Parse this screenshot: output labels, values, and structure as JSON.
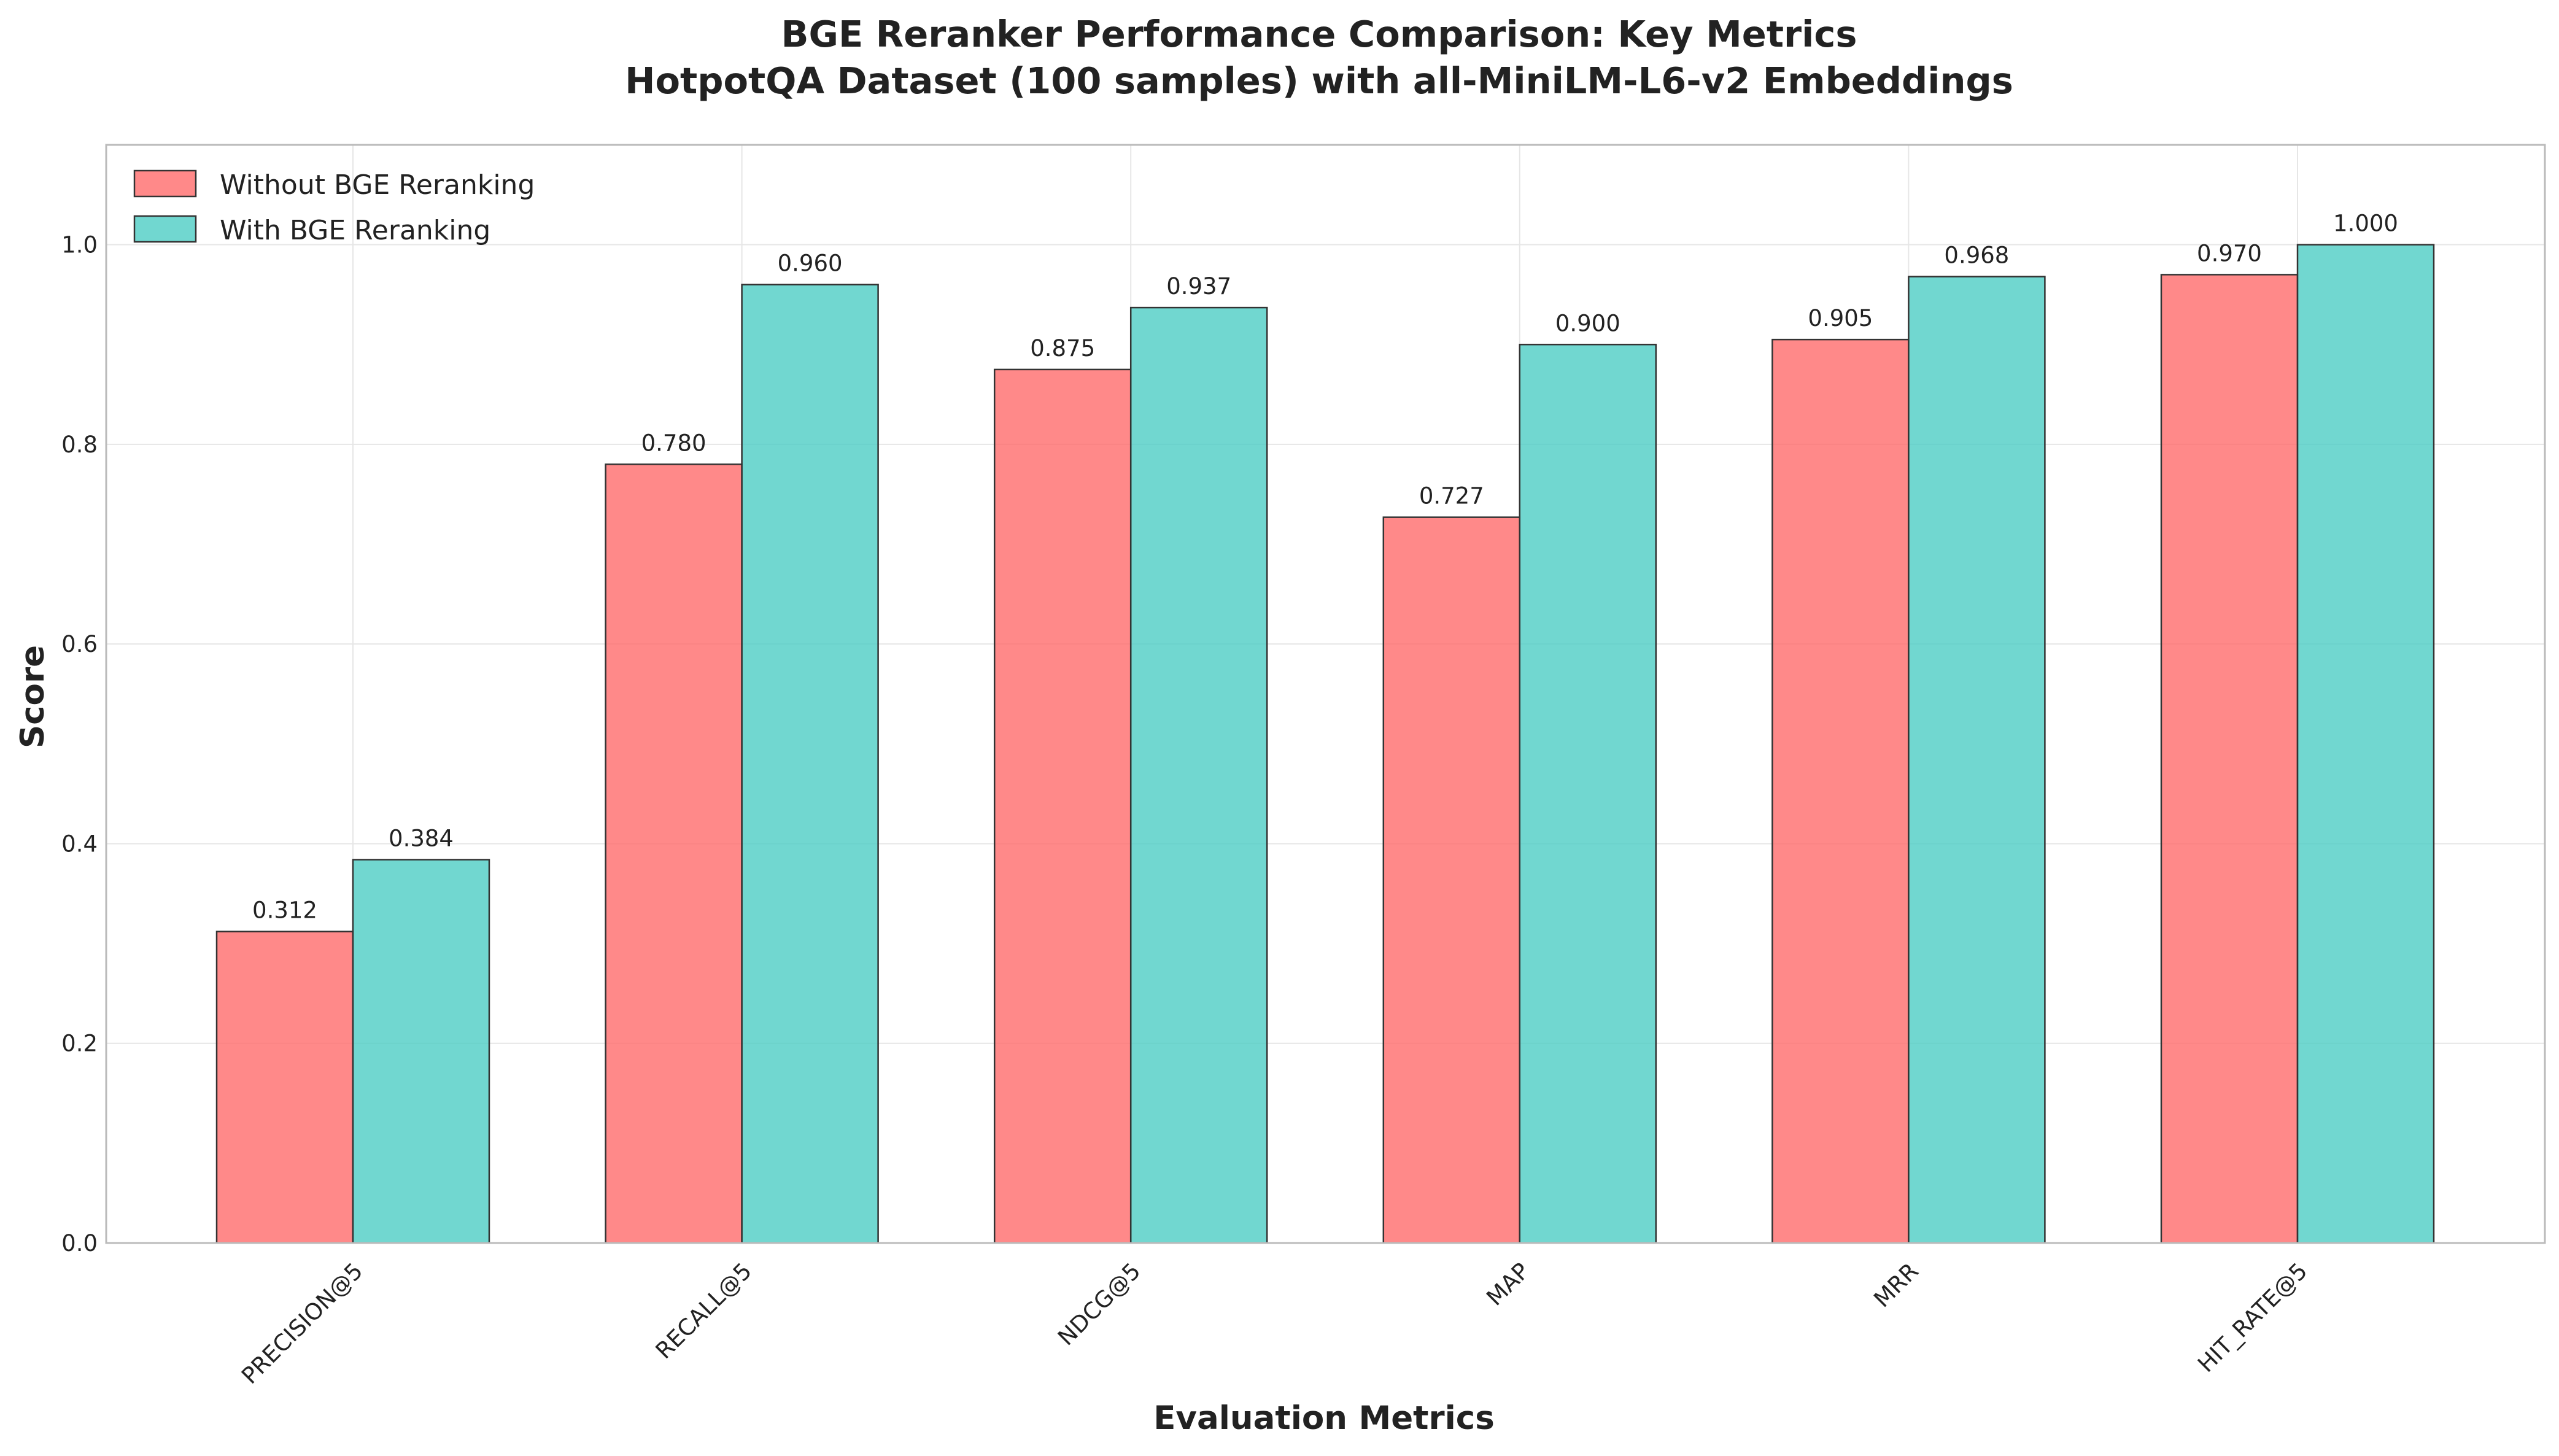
{
  "chart_data": {
    "type": "bar",
    "title": "BGE Reranker Performance Comparison: Key Metrics",
    "subtitle": "HotpotQA Dataset (100 samples) with all-MiniLM-L6-v2 Embeddings",
    "xlabel": "Evaluation Metrics",
    "ylabel": "Score",
    "ylim": [
      0,
      1.1
    ],
    "yticks": [
      0.0,
      0.2,
      0.4,
      0.6,
      0.8,
      1.0
    ],
    "grid": true,
    "legend_position": "top-left",
    "categories": [
      "PRECISION@5",
      "RECALL@5",
      "NDCG@5",
      "MAP",
      "MRR",
      "HIT_RATE@5"
    ],
    "series": [
      {
        "name": "Without BGE Reranking",
        "color": "#ff6b6b",
        "values": [
          0.312,
          0.78,
          0.875,
          0.727,
          0.905,
          0.97
        ],
        "labels": [
          "0.312",
          "0.780",
          "0.875",
          "0.727",
          "0.905",
          "0.970"
        ]
      },
      {
        "name": "With BGE Reranking",
        "color": "#4ecdc4",
        "values": [
          0.384,
          0.96,
          0.937,
          0.9,
          0.968,
          1.0
        ],
        "labels": [
          "0.384",
          "0.960",
          "0.937",
          "0.900",
          "0.968",
          "1.000"
        ]
      }
    ]
  }
}
